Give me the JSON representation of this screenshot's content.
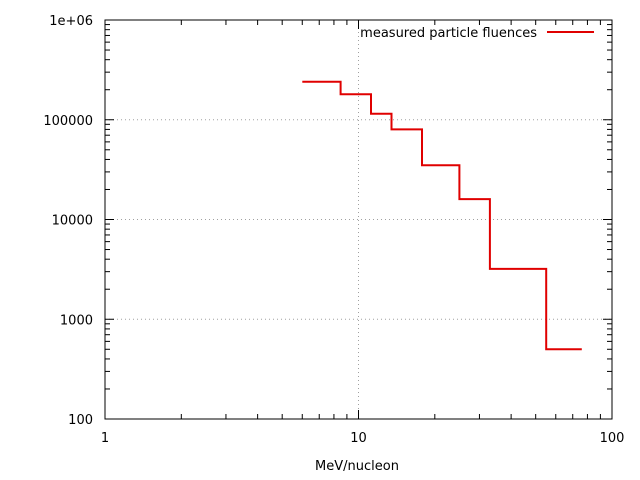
{
  "chart_data": {
    "type": "line",
    "title": "",
    "xlabel": "MeV/nucleon",
    "ylabel": "",
    "xscale": "log",
    "yscale": "log",
    "xlim": [
      1,
      100
    ],
    "ylim": [
      100,
      1000000
    ],
    "x_tick_labels": [
      "1",
      "10",
      "100"
    ],
    "y_tick_labels": [
      "100",
      "1000",
      "10000",
      "100000",
      "1e+06"
    ],
    "grid": true,
    "legend_position": "top-right",
    "series": [
      {
        "name": "measured particle fluences",
        "color": "#e00000",
        "style": "steps",
        "x": [
          6.0,
          8.5,
          8.5,
          11.2,
          11.2,
          13.5,
          13.5,
          17.8,
          17.8,
          25.0,
          25.0,
          33.0,
          33.0,
          55.0,
          55.0,
          76.0
        ],
        "y": [
          240000,
          240000,
          180000,
          180000,
          115000,
          115000,
          80000,
          80000,
          35000,
          35000,
          16000,
          16000,
          3200,
          3200,
          500,
          500
        ]
      }
    ]
  }
}
